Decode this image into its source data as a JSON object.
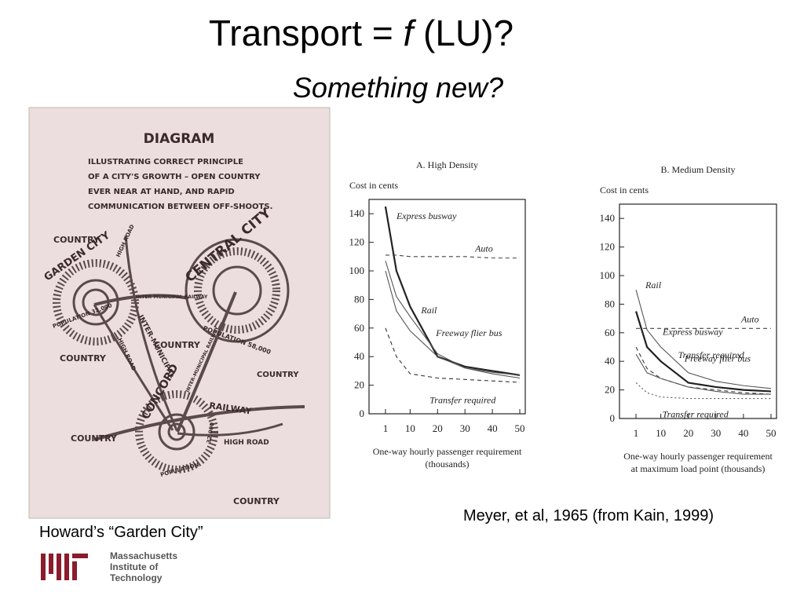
{
  "title": [
    "Transport = ",
    "f",
    " (LU)?"
  ],
  "subtitle": "Something new?",
  "diagram": {
    "heading": "DIAGRAM",
    "description": [
      "ILLUSTRATING CORRECT PRINCIPLE",
      "OF A CITY'S GROWTH – OPEN COUNTRY",
      "EVER NEAR AT HAND, AND RAPID",
      "COMMUNICATION BETWEEN OFF-SHOOTS."
    ],
    "labels": [
      "COUNTRY",
      "GARDEN CITY",
      "HIGH ROAD",
      "CENTRAL CITY",
      "INTER-MUNICIPAL RAILWAY",
      "POPULATION 32,000",
      "INTER-MUNICIPAL",
      "COUNTRY",
      "POPULATION 58,000",
      "COUNTRY",
      "COUNTRY",
      "CONCORD",
      "RAILWAY",
      "COUNTRY",
      "HIGH ROAD",
      "POPULATION",
      "COUNTRY",
      "HIGH ROAD",
      "INTER-MUNICIPAL RAILWAY",
      "32,000"
    ]
  },
  "caption": "Howard’s “Garden City”",
  "source": "Meyer, et al, 1965 (from Kain, 1999)",
  "logo": [
    "Massachusetts",
    "Institute of",
    "Technology"
  ],
  "chart_data": [
    {
      "type": "line",
      "title": "A. High Density",
      "ylabel": "Cost in cents",
      "xlabel": [
        "One-way hourly passenger requirement",
        "(thousands)"
      ],
      "x": [
        1,
        5,
        10,
        20,
        30,
        40,
        50
      ],
      "xlim": [
        -5,
        52
      ],
      "xticks": [
        1,
        10,
        20,
        30,
        40,
        50
      ],
      "ylim": [
        0,
        150
      ],
      "yticks": [
        0,
        20,
        40,
        60,
        80,
        100,
        120,
        140
      ],
      "series": [
        {
          "name": "Express busway",
          "color": "#222222",
          "style": "thick",
          "values": [
            145,
            100,
            75,
            40,
            33,
            30,
            27
          ]
        },
        {
          "name": "Auto",
          "color": "#444444",
          "style": "dashed",
          "values": [
            111,
            111,
            110,
            110,
            110,
            109,
            109
          ]
        },
        {
          "name": "Rail",
          "color": "#555555",
          "style": "solid",
          "values": [
            107,
            82,
            68,
            42,
            32,
            28,
            25
          ]
        },
        {
          "name": "Freeway flier bus",
          "color": "#555555",
          "style": "solid",
          "values": [
            100,
            72,
            58,
            40,
            32,
            29,
            27
          ]
        },
        {
          "name": "Transfer required",
          "color": "#333333",
          "style": "dashed",
          "values": [
            60,
            40,
            28,
            25,
            24,
            23,
            22
          ]
        }
      ]
    },
    {
      "type": "line",
      "title": "B. Medium Density",
      "ylabel": "Cost in cents",
      "xlabel": [
        "One-way hourly passenger requirement",
        "at maximum load point (thousands)"
      ],
      "x": [
        1,
        5,
        10,
        20,
        30,
        40,
        50
      ],
      "xlim": [
        -5,
        52
      ],
      "xticks": [
        1,
        10,
        20,
        30,
        40,
        50
      ],
      "ylim": [
        0,
        150
      ],
      "yticks": [
        0,
        20,
        40,
        60,
        80,
        100,
        120,
        140
      ],
      "series": [
        {
          "name": "Rail",
          "color": "#555555",
          "style": "solid",
          "values": [
            90,
            62,
            50,
            32,
            26,
            23,
            21
          ]
        },
        {
          "name": "Express busway",
          "color": "#222222",
          "style": "thick",
          "values": [
            75,
            50,
            40,
            25,
            22,
            20,
            19
          ]
        },
        {
          "name": "Auto",
          "color": "#444444",
          "style": "dashed",
          "values": [
            63,
            63,
            63,
            63,
            63,
            63,
            63
          ]
        },
        {
          "name": "Transfer required",
          "color": "#333333",
          "style": "dashed",
          "values": [
            50,
            35,
            28,
            22,
            20,
            18,
            17
          ]
        },
        {
          "name": "Freeway flier bus",
          "color": "#555555",
          "style": "solid",
          "values": [
            45,
            32,
            28,
            22,
            19,
            17,
            17
          ]
        },
        {
          "name": "Transfer required",
          "color": "#555555",
          "style": "dotted",
          "values": [
            25,
            18,
            15,
            14,
            14,
            14,
            14
          ]
        }
      ]
    }
  ]
}
